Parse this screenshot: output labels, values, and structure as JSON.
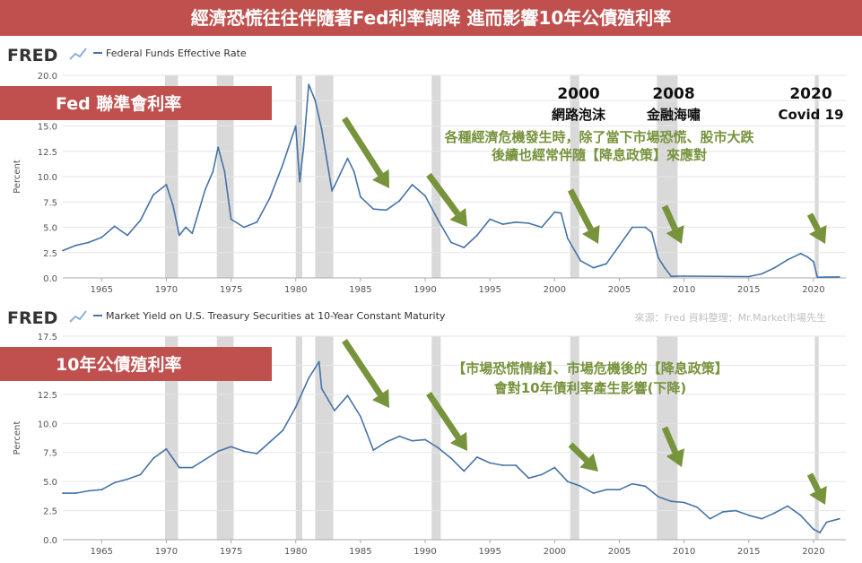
{
  "title": "經濟恐慌往往伴隨著Fed利率調降 進而影響10年公債殖利率",
  "source_note": "來源：Fred  資料整理：Mr.Market市場先生",
  "fred_logo": "FRED",
  "events": [
    {
      "year": "2000",
      "name": "網路泡沫"
    },
    {
      "year": "2008",
      "name": "金融海嘯"
    },
    {
      "year": "2020",
      "name": "Covid 19"
    }
  ],
  "colors": {
    "title_bg": "#c0504d",
    "line": "#4572a7",
    "arrow": "#77933c",
    "recession": "#d9d9d9"
  },
  "icons": {
    "logo": "fred-graph-icon",
    "arrow": "down-right-arrow-icon"
  },
  "chart_data": [
    {
      "type": "line",
      "label": "Fed 聯準會利率",
      "legend": "Federal Funds Effective Rate",
      "ylabel": "Percent",
      "ylim": [
        0,
        20
      ],
      "yticks": [
        "0.0",
        "2.5",
        "5.0",
        "7.5",
        "10.0",
        "12.5",
        "15.0",
        "17.5",
        "20.0"
      ],
      "xticks": [
        "1965",
        "1970",
        "1975",
        "1980",
        "1985",
        "1990",
        "1995",
        "2000",
        "2005",
        "2010",
        "2015",
        "2020"
      ],
      "annotation": [
        "各種經濟危機發生時，除了當下市場恐慌、股市大跌",
        "後續也經常伴隨【降息政策】來應對"
      ],
      "series": [
        {
          "x": [
            1962,
            1963,
            1964,
            1965,
            1966,
            1967,
            1968,
            1969,
            1970,
            1970.5,
            1971,
            1971.5,
            1972,
            1973,
            1973.6,
            1974,
            1974.5,
            1975,
            1976,
            1977,
            1978,
            1979,
            1980,
            1980.3,
            1980.6,
            1981,
            1981.5,
            1982,
            1982.8,
            1983,
            1984,
            1984.5,
            1985,
            1986,
            1987,
            1988,
            1989,
            1990,
            1991,
            1992,
            1993,
            1994,
            1995,
            1996,
            1997,
            1998,
            1999,
            2000,
            2000.5,
            2001,
            2002,
            2003,
            2004,
            2005,
            2006,
            2007,
            2007.5,
            2008,
            2008.5,
            2009,
            2010,
            2015,
            2016,
            2017,
            2018,
            2019,
            2019.5,
            2020,
            2020.3,
            2021,
            2022
          ],
          "y": [
            2.7,
            3.2,
            3.5,
            4.0,
            5.1,
            4.2,
            5.7,
            8.2,
            9.2,
            7.2,
            4.2,
            5.0,
            4.4,
            8.7,
            10.5,
            12.9,
            10.5,
            5.8,
            5.0,
            5.5,
            7.9,
            11.2,
            15.0,
            9.5,
            12.8,
            19.1,
            17.5,
            14.7,
            8.6,
            9.1,
            11.8,
            10.5,
            8.0,
            6.8,
            6.7,
            7.6,
            9.2,
            8.1,
            5.7,
            3.5,
            3.0,
            4.2,
            5.8,
            5.3,
            5.5,
            5.4,
            5.0,
            6.5,
            6.4,
            3.9,
            1.7,
            1.0,
            1.4,
            3.2,
            5.0,
            5.0,
            4.5,
            2.0,
            1.0,
            0.16,
            0.18,
            0.13,
            0.4,
            1.0,
            1.8,
            2.4,
            2.1,
            1.6,
            0.06,
            0.08,
            0.1
          ]
        }
      ]
    },
    {
      "type": "line",
      "label": "10年公債殖利率",
      "legend": "Market Yield on U.S. Treasury Securities at 10-Year Constant Maturity",
      "ylabel": "Percent",
      "ylim": [
        0,
        17.5
      ],
      "yticks": [
        "0.0",
        "2.5",
        "5.0",
        "7.5",
        "10.0",
        "12.5",
        "15.0",
        "17.5"
      ],
      "xticks": [
        "1965",
        "1970",
        "1975",
        "1980",
        "1985",
        "1990",
        "1995",
        "2000",
        "2005",
        "2010",
        "2015",
        "2020"
      ],
      "annotation": [
        "【市場恐慌情緒】、市場危機後的【降息政策】",
        "會對10年債利率產生影響(下降)"
      ],
      "series": [
        {
          "x": [
            1962,
            1963,
            1964,
            1965,
            1966,
            1967,
            1968,
            1969,
            1970,
            1971,
            1972,
            1973,
            1974,
            1975,
            1976,
            1977,
            1978,
            1979,
            1980,
            1981,
            1981.8,
            1982,
            1983,
            1984,
            1985,
            1986,
            1987,
            1988,
            1989,
            1990,
            1991,
            1992,
            1993,
            1994,
            1995,
            1996,
            1997,
            1998,
            1999,
            2000,
            2001,
            2002,
            2003,
            2004,
            2005,
            2006,
            2007,
            2008,
            2009,
            2010,
            2011,
            2012,
            2013,
            2014,
            2015,
            2016,
            2017,
            2018,
            2019,
            2020,
            2020.5,
            2021,
            2022
          ],
          "y": [
            4.0,
            4.0,
            4.2,
            4.3,
            4.9,
            5.2,
            5.6,
            7.0,
            7.8,
            6.2,
            6.2,
            6.9,
            7.6,
            8.0,
            7.6,
            7.4,
            8.4,
            9.4,
            11.4,
            13.9,
            15.3,
            13.0,
            11.1,
            12.4,
            10.6,
            7.7,
            8.4,
            8.9,
            8.5,
            8.6,
            7.9,
            7.0,
            5.9,
            7.1,
            6.6,
            6.4,
            6.4,
            5.3,
            5.6,
            6.2,
            5.0,
            4.6,
            4.0,
            4.3,
            4.3,
            4.8,
            4.6,
            3.7,
            3.3,
            3.2,
            2.8,
            1.8,
            2.4,
            2.5,
            2.1,
            1.8,
            2.3,
            2.9,
            2.1,
            0.9,
            0.6,
            1.5,
            1.8
          ]
        }
      ]
    }
  ],
  "recessions": [
    [
      1969.9,
      1970.9
    ],
    [
      1973.9,
      1975.2
    ],
    [
      1980.0,
      1980.5
    ],
    [
      1981.5,
      1982.9
    ],
    [
      1990.5,
      1991.2
    ],
    [
      2001.2,
      2001.9
    ],
    [
      2007.9,
      2009.5
    ],
    [
      2020.1,
      2020.4
    ]
  ]
}
